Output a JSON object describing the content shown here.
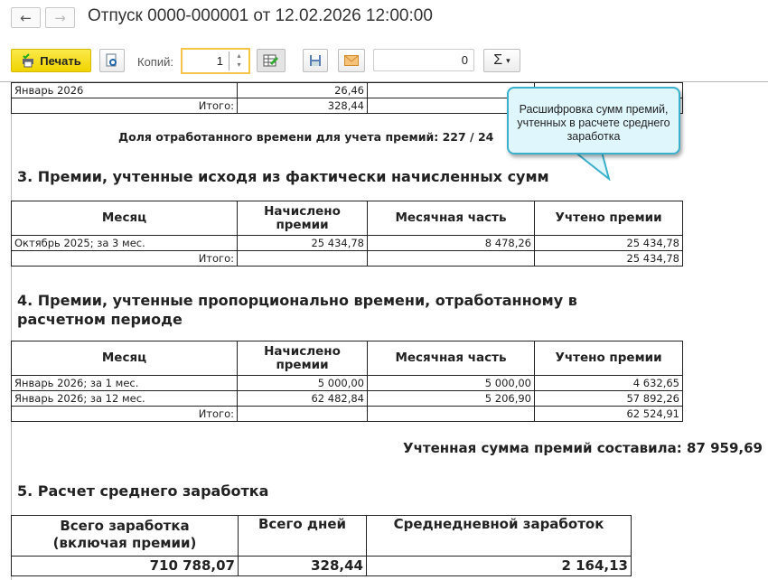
{
  "window": {
    "title": "Отпуск 0000-000001 от 12.02.2026 12:00:00",
    "back": "←",
    "forward": "→"
  },
  "toolbar": {
    "print_label": "Печать",
    "copies_label": "Копий:",
    "copies_value": "1",
    "sum_value": "0",
    "sigma": "Σ",
    "dropdown": "▾"
  },
  "top_table": {
    "rows": [
      {
        "month": "Январь 2026",
        "days": "26,46"
      },
      {
        "month": "Итого:",
        "days": "328,44"
      }
    ]
  },
  "share_line": "Доля отработанного времени для учета премий: 227 / 24",
  "callout": "Расшифровка сумм премий, учтенных в расчете среднего заработка",
  "section3": {
    "title": "3. Премии, учтенные исходя из фактически начисленных сумм",
    "headers": [
      "Месяц",
      "Начислено премии",
      "Месячная часть",
      "Учтено премии"
    ],
    "rows": [
      [
        "Октябрь 2025; за 3 мес.",
        "25 434,78",
        "8 478,26",
        "25 434,78"
      ]
    ],
    "total_label": "Итого:",
    "total": "25 434,78"
  },
  "section4": {
    "title": "4. Премии, учтенные пропорционально времени, отработанному в расчетном периоде",
    "headers": [
      "Месяц",
      "Начислено премии",
      "Месячная часть",
      "Учтено премии"
    ],
    "rows": [
      [
        "Январь 2026; за 1 мес.",
        "5 000,00",
        "5 000,00",
        "4 632,65"
      ],
      [
        "Январь 2026; за 12 мес.",
        "62 482,84",
        "5 206,90",
        "57 892,26"
      ]
    ],
    "total_label": "Итого:",
    "total": "62 524,91"
  },
  "bonus_total": "Учтенная сумма премий составила: 87 959,69",
  "section5": {
    "title": "5. Расчет среднего  заработка",
    "headers": [
      "Всего заработка (включая премии)",
      "Всего дней",
      "Среднедневной заработок"
    ],
    "values": [
      "710 788,07",
      "328,44",
      "2 164,13"
    ]
  }
}
